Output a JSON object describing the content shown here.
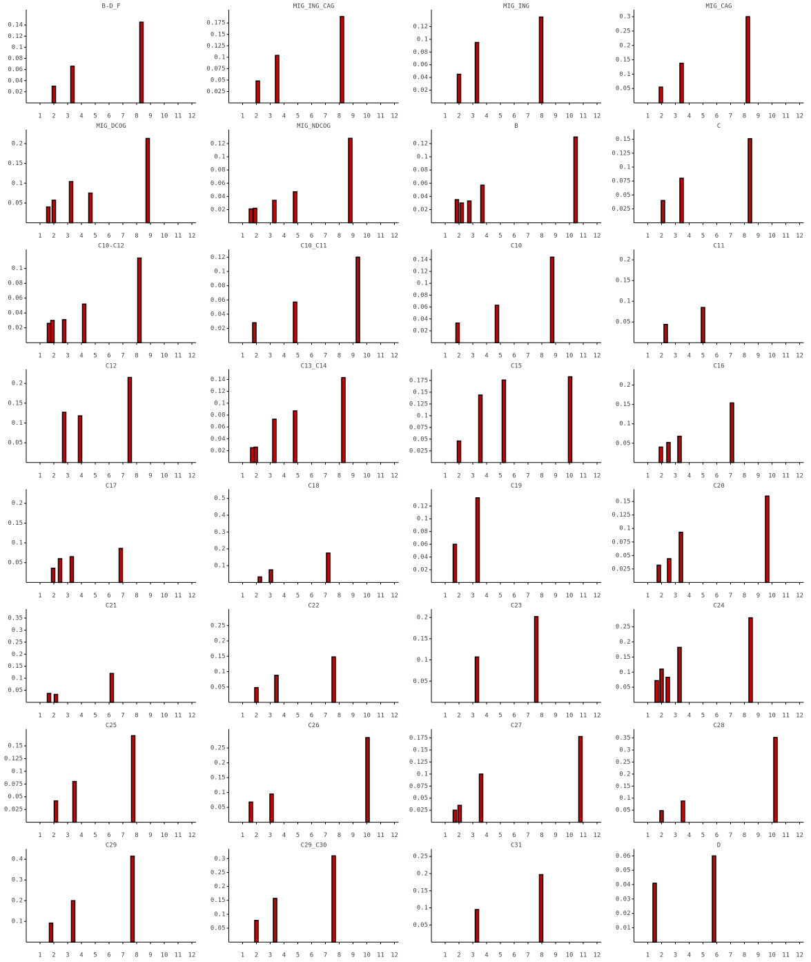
{
  "chart_data": [
    {
      "type": "bar",
      "title": "B-D_F",
      "x": [
        2.0,
        3.35,
        8.35
      ],
      "values": [
        0.03,
        0.066,
        0.145
      ],
      "color": "#cc0000",
      "edgecolor": "#000000",
      "xlim": [
        0,
        12.3
      ],
      "ylim": [
        0,
        0.16
      ],
      "xticks": [
        1,
        2,
        3,
        4,
        5,
        6,
        7,
        8,
        9,
        10,
        11,
        12
      ],
      "yticks": [
        0.02,
        0.04,
        0.06,
        0.08,
        0.1,
        0.12,
        0.14
      ]
    },
    {
      "type": "bar",
      "title": "MIG_ING_CAG",
      "x": [
        2.1,
        3.5,
        8.2
      ],
      "values": [
        0.048,
        0.104,
        0.189
      ],
      "color": "#cc0000",
      "edgecolor": "#000000",
      "xlim": [
        0,
        12.3
      ],
      "ylim": [
        0,
        0.195
      ],
      "xticks": [
        1,
        2,
        3,
        4,
        5,
        6,
        7,
        8,
        9,
        10,
        11,
        12
      ],
      "yticks": [
        0.025,
        0.05,
        0.075,
        0.1,
        0.125,
        0.15,
        0.175
      ]
    },
    {
      "type": "bar",
      "title": "MIG_ING",
      "x": [
        2.0,
        3.3,
        7.95
      ],
      "values": [
        0.045,
        0.095,
        0.135
      ],
      "color": "#cc0000",
      "edgecolor": "#000000",
      "xlim": [
        0,
        12.3
      ],
      "ylim": [
        0,
        0.14
      ],
      "xticks": [
        1,
        2,
        3,
        4,
        5,
        6,
        7,
        8,
        9,
        10,
        11,
        12
      ],
      "yticks": [
        0.02,
        0.04,
        0.06,
        0.08,
        0.1,
        0.12
      ]
    },
    {
      "type": "bar",
      "title": "MIG_CAG",
      "x": [
        1.95,
        3.45,
        8.25
      ],
      "values": [
        0.055,
        0.138,
        0.3
      ],
      "color": "#cc0000",
      "edgecolor": "#000000",
      "xlim": [
        0,
        12.3
      ],
      "ylim": [
        0,
        0.31
      ],
      "xticks": [
        1,
        2,
        3,
        4,
        5,
        6,
        7,
        8,
        9,
        10,
        11,
        12
      ],
      "yticks": [
        0.05,
        0.1,
        0.15,
        0.2,
        0.25,
        0.3
      ]
    },
    {
      "type": "bar",
      "title": "MIG_DCOG",
      "x": [
        1.6,
        2.0,
        3.25,
        4.65,
        8.8
      ],
      "values": [
        0.04,
        0.057,
        0.104,
        0.075,
        0.213
      ],
      "color": "#cc0000",
      "edgecolor": "#000000",
      "xlim": [
        0,
        12.3
      ],
      "ylim": [
        0,
        0.225
      ],
      "xticks": [
        1,
        2,
        3,
        4,
        5,
        6,
        7,
        8,
        9,
        10,
        11,
        12
      ],
      "yticks": [
        0.05,
        0.1,
        0.15,
        0.2
      ]
    },
    {
      "type": "bar",
      "title": "MIG_NDCOG",
      "x": [
        1.6,
        1.9,
        3.3,
        4.8,
        8.8
      ],
      "values": [
        0.021,
        0.022,
        0.034,
        0.047,
        0.128
      ],
      "color": "#cc0000",
      "edgecolor": "#000000",
      "xlim": [
        0,
        12.3
      ],
      "ylim": [
        0,
        0.135
      ],
      "xticks": [
        1,
        2,
        3,
        4,
        5,
        6,
        7,
        8,
        9,
        10,
        11,
        12
      ],
      "yticks": [
        0.02,
        0.04,
        0.06,
        0.08,
        0.1,
        0.12
      ]
    },
    {
      "type": "bar",
      "title": "B",
      "x": [
        1.85,
        2.2,
        2.75,
        3.7,
        10.45
      ],
      "values": [
        0.035,
        0.03,
        0.033,
        0.057,
        0.13
      ],
      "color": "#cc0000",
      "edgecolor": "#000000",
      "xlim": [
        0,
        12.3
      ],
      "ylim": [
        0,
        0.135
      ],
      "xticks": [
        1,
        2,
        3,
        4,
        5,
        6,
        7,
        8,
        9,
        10,
        11,
        12
      ],
      "yticks": [
        0.02,
        0.04,
        0.06,
        0.08,
        0.1,
        0.12
      ]
    },
    {
      "type": "bar",
      "title": "C",
      "x": [
        2.1,
        3.45,
        8.4
      ],
      "values": [
        0.04,
        0.08,
        0.151
      ],
      "color": "#cc0000",
      "edgecolor": "#000000",
      "xlim": [
        0,
        12.3
      ],
      "ylim": [
        0,
        0.16
      ],
      "xticks": [
        1,
        2,
        3,
        4,
        5,
        6,
        7,
        8,
        9,
        10,
        11,
        12
      ],
      "yticks": [
        0.025,
        0.05,
        0.075,
        0.1,
        0.125,
        0.15
      ]
    },
    {
      "type": "bar",
      "title": "C10-C12",
      "x": [
        1.65,
        1.9,
        2.75,
        4.2,
        8.2
      ],
      "values": [
        0.026,
        0.03,
        0.031,
        0.052,
        0.114
      ],
      "color": "#cc0000",
      "edgecolor": "#000000",
      "xlim": [
        0,
        12.3
      ],
      "ylim": [
        0,
        0.12
      ],
      "xticks": [
        1,
        2,
        3,
        4,
        5,
        6,
        7,
        8,
        9,
        10,
        11,
        12
      ],
      "yticks": [
        0.02,
        0.04,
        0.06,
        0.08,
        0.1
      ]
    },
    {
      "type": "bar",
      "title": "C10_C11",
      "x": [
        1.85,
        4.8,
        9.35
      ],
      "values": [
        0.028,
        0.057,
        0.12
      ],
      "color": "#cc0000",
      "edgecolor": "#000000",
      "xlim": [
        0,
        12.3
      ],
      "ylim": [
        0,
        0.125
      ],
      "xticks": [
        1,
        2,
        3,
        4,
        5,
        6,
        7,
        8,
        9,
        10,
        11,
        12
      ],
      "yticks": [
        0.02,
        0.04,
        0.06,
        0.08,
        0.1,
        0.12
      ]
    },
    {
      "type": "bar",
      "title": "C10",
      "x": [
        1.9,
        4.75,
        8.75
      ],
      "values": [
        0.033,
        0.063,
        0.144
      ],
      "color": "#cc0000",
      "edgecolor": "#000000",
      "xlim": [
        0,
        12.3
      ],
      "ylim": [
        0,
        0.15
      ],
      "xticks": [
        1,
        2,
        3,
        4,
        5,
        6,
        7,
        8,
        9,
        10,
        11,
        12
      ],
      "yticks": [
        0.02,
        0.04,
        0.06,
        0.08,
        0.1,
        0.12,
        0.14
      ]
    },
    {
      "type": "bar",
      "title": "C11",
      "x": [
        2.3,
        5.0
      ],
      "values": [
        0.044,
        0.085
      ],
      "color": "#cc0000",
      "edgecolor": "#000000",
      "xlim": [
        0,
        12.3
      ],
      "ylim": [
        0,
        0.215
      ],
      "xticks": [
        1,
        2,
        3,
        4,
        5,
        6,
        7,
        8,
        9,
        10,
        11,
        12
      ],
      "yticks": [
        0.05,
        0.1,
        0.15,
        0.2
      ]
    },
    {
      "type": "bar",
      "title": "C12",
      "x": [
        2.75,
        3.9,
        7.5
      ],
      "values": [
        0.127,
        0.118,
        0.215
      ],
      "color": "#cc0000",
      "edgecolor": "#000000",
      "xlim": [
        0,
        12.3
      ],
      "ylim": [
        0,
        0.225
      ],
      "xticks": [
        1,
        2,
        3,
        4,
        5,
        6,
        7,
        8,
        9,
        10,
        11,
        12
      ],
      "yticks": [
        0.05,
        0.1,
        0.15,
        0.2
      ]
    },
    {
      "type": "bar",
      "title": "C13_C14",
      "x": [
        1.7,
        1.95,
        3.3,
        4.8,
        8.3
      ],
      "values": [
        0.025,
        0.026,
        0.073,
        0.087,
        0.143
      ],
      "color": "#cc0000",
      "edgecolor": "#000000",
      "xlim": [
        0,
        12.3
      ],
      "ylim": [
        0,
        0.15
      ],
      "xticks": [
        1,
        2,
        3,
        4,
        5,
        6,
        7,
        8,
        9,
        10,
        11,
        12
      ],
      "yticks": [
        0.02,
        0.04,
        0.06,
        0.08,
        0.1,
        0.12,
        0.14
      ]
    },
    {
      "type": "bar",
      "title": "C15",
      "x": [
        2.0,
        3.55,
        5.25,
        10.05
      ],
      "values": [
        0.046,
        0.144,
        0.176,
        0.183
      ],
      "color": "#cc0000",
      "edgecolor": "#000000",
      "xlim": [
        0,
        12.3
      ],
      "ylim": [
        0,
        0.19
      ],
      "xticks": [
        1,
        2,
        3,
        4,
        5,
        6,
        7,
        8,
        9,
        10,
        11,
        12
      ],
      "yticks": [
        0.025,
        0.05,
        0.075,
        0.1,
        0.125,
        0.15,
        0.175
      ]
    },
    {
      "type": "bar",
      "title": "C16",
      "x": [
        1.95,
        2.5,
        3.3,
        7.1
      ],
      "values": [
        0.04,
        0.052,
        0.068,
        0.154
      ],
      "color": "#cc0000",
      "edgecolor": "#000000",
      "xlim": [
        0,
        12.3
      ],
      "ylim": [
        0,
        0.23
      ],
      "xticks": [
        1,
        2,
        3,
        4,
        5,
        6,
        7,
        8,
        9,
        10,
        11,
        12
      ],
      "yticks": [
        0.05,
        0.1,
        0.15,
        0.2
      ]
    },
    {
      "type": "bar",
      "title": "C17",
      "x": [
        1.95,
        2.45,
        3.3,
        6.85
      ],
      "values": [
        0.036,
        0.06,
        0.065,
        0.086
      ],
      "color": "#cc0000",
      "edgecolor": "#000000",
      "xlim": [
        0,
        12.3
      ],
      "ylim": [
        0,
        0.225
      ],
      "xticks": [
        1,
        2,
        3,
        4,
        5,
        6,
        7,
        8,
        9,
        10,
        11,
        12
      ],
      "yticks": [
        0.05,
        0.1,
        0.15,
        0.2
      ]
    },
    {
      "type": "bar",
      "title": "C18",
      "x": [
        2.25,
        3.05,
        7.2
      ],
      "values": [
        0.033,
        0.075,
        0.175
      ],
      "color": "#cc0000",
      "edgecolor": "#000000",
      "xlim": [
        0,
        12.3
      ],
      "ylim": [
        0,
        0.53
      ],
      "xticks": [
        1,
        2,
        3,
        4,
        5,
        6,
        7,
        8,
        9,
        10,
        11,
        12
      ],
      "yticks": [
        0.1,
        0.2,
        0.3,
        0.4,
        0.5
      ]
    },
    {
      "type": "bar",
      "title": "C19",
      "x": [
        1.7,
        3.35
      ],
      "values": [
        0.06,
        0.133
      ],
      "color": "#cc0000",
      "edgecolor": "#000000",
      "xlim": [
        0,
        12.3
      ],
      "ylim": [
        0,
        0.14
      ],
      "xticks": [
        1,
        2,
        3,
        4,
        5,
        6,
        7,
        8,
        9,
        10,
        11,
        12
      ],
      "yticks": [
        0.02,
        0.04,
        0.06,
        0.08,
        0.1,
        0.12
      ]
    },
    {
      "type": "bar",
      "title": "C20",
      "x": [
        1.8,
        2.55,
        3.4,
        9.65
      ],
      "values": [
        0.032,
        0.044,
        0.093,
        0.16
      ],
      "color": "#cc0000",
      "edgecolor": "#000000",
      "xlim": [
        0,
        12.3
      ],
      "ylim": [
        0,
        0.165
      ],
      "xticks": [
        1,
        2,
        3,
        4,
        5,
        6,
        7,
        8,
        9,
        10,
        11,
        12
      ],
      "yticks": [
        0.025,
        0.05,
        0.075,
        0.1,
        0.125,
        0.15
      ]
    },
    {
      "type": "bar",
      "title": "C21",
      "x": [
        1.65,
        2.15,
        6.2
      ],
      "values": [
        0.037,
        0.033,
        0.12
      ],
      "color": "#cc0000",
      "edgecolor": "#000000",
      "xlim": [
        0,
        12.3
      ],
      "ylim": [
        0,
        0.37
      ],
      "xticks": [
        1,
        2,
        3,
        4,
        5,
        6,
        7,
        8,
        9,
        10,
        11,
        12
      ],
      "yticks": [
        0.05,
        0.1,
        0.15,
        0.2,
        0.25,
        0.3,
        0.35
      ]
    },
    {
      "type": "bar",
      "title": "C22",
      "x": [
        2.0,
        3.45,
        7.6
      ],
      "values": [
        0.048,
        0.088,
        0.148
      ],
      "color": "#cc0000",
      "edgecolor": "#000000",
      "xlim": [
        0,
        12.3
      ],
      "ylim": [
        0,
        0.29
      ],
      "xticks": [
        1,
        2,
        3,
        4,
        5,
        6,
        7,
        8,
        9,
        10,
        11,
        12
      ],
      "yticks": [
        0.05,
        0.1,
        0.15,
        0.2,
        0.25
      ]
    },
    {
      "type": "bar",
      "title": "C23",
      "x": [
        3.3,
        7.6
      ],
      "values": [
        0.107,
        0.202
      ],
      "color": "#cc0000",
      "edgecolor": "#000000",
      "xlim": [
        0,
        12.3
      ],
      "ylim": [
        0,
        0.21
      ],
      "xticks": [
        1,
        2,
        3,
        4,
        5,
        6,
        7,
        8,
        9,
        10,
        11,
        12
      ],
      "yticks": [
        0.05,
        0.1,
        0.15,
        0.2
      ]
    },
    {
      "type": "bar",
      "title": "C24",
      "x": [
        1.65,
        2.0,
        2.45,
        3.3,
        8.45
      ],
      "values": [
        0.072,
        0.11,
        0.083,
        0.182,
        0.28
      ],
      "color": "#cc0000",
      "edgecolor": "#000000",
      "xlim": [
        0,
        12.3
      ],
      "ylim": [
        0,
        0.295
      ],
      "xticks": [
        1,
        2,
        3,
        4,
        5,
        6,
        7,
        8,
        9,
        10,
        11,
        12
      ],
      "yticks": [
        0.05,
        0.1,
        0.15,
        0.2,
        0.25
      ]
    },
    {
      "type": "bar",
      "title": "C25",
      "x": [
        2.15,
        3.5,
        7.75
      ],
      "values": [
        0.042,
        0.08,
        0.17
      ],
      "color": "#cc0000",
      "edgecolor": "#000000",
      "xlim": [
        0,
        12.3
      ],
      "ylim": [
        0,
        0.175
      ],
      "xticks": [
        1,
        2,
        3,
        4,
        5,
        6,
        7,
        8,
        9,
        10,
        11,
        12
      ],
      "yticks": [
        0.025,
        0.05,
        0.075,
        0.1,
        0.125,
        0.15
      ]
    },
    {
      "type": "bar",
      "title": "C26",
      "x": [
        1.6,
        3.1,
        10.05
      ],
      "values": [
        0.068,
        0.095,
        0.285
      ],
      "color": "#cc0000",
      "edgecolor": "#000000",
      "xlim": [
        0,
        12.3
      ],
      "ylim": [
        0,
        0.3
      ],
      "xticks": [
        1,
        2,
        3,
        4,
        5,
        6,
        7,
        8,
        9,
        10,
        11,
        12
      ],
      "yticks": [
        0.05,
        0.1,
        0.15,
        0.2,
        0.25
      ]
    },
    {
      "type": "bar",
      "title": "C27",
      "x": [
        1.7,
        2.05,
        3.6,
        10.8
      ],
      "values": [
        0.025,
        0.035,
        0.1,
        0.178
      ],
      "color": "#cc0000",
      "edgecolor": "#000000",
      "xlim": [
        0,
        12.3
      ],
      "ylim": [
        0,
        0.185
      ],
      "xticks": [
        1,
        2,
        3,
        4,
        5,
        6,
        7,
        8,
        9,
        10,
        11,
        12
      ],
      "yticks": [
        0.025,
        0.05,
        0.075,
        0.1,
        0.125,
        0.15,
        0.175
      ]
    },
    {
      "type": "bar",
      "title": "C28",
      "x": [
        2.0,
        3.55,
        10.25
      ],
      "values": [
        0.048,
        0.088,
        0.352
      ],
      "color": "#cc0000",
      "edgecolor": "#000000",
      "xlim": [
        0,
        12.3
      ],
      "ylim": [
        0,
        0.37
      ],
      "xticks": [
        1,
        2,
        3,
        4,
        5,
        6,
        7,
        8,
        9,
        10,
        11,
        12
      ],
      "yticks": [
        0.05,
        0.1,
        0.15,
        0.2,
        0.25,
        0.3,
        0.35
      ]
    },
    {
      "type": "bar",
      "title": "C29",
      "x": [
        1.8,
        3.4,
        7.7
      ],
      "values": [
        0.092,
        0.2,
        0.415
      ],
      "color": "#cc0000",
      "edgecolor": "#000000",
      "xlim": [
        0,
        12.3
      ],
      "ylim": [
        0,
        0.43
      ],
      "xticks": [
        1,
        2,
        3,
        4,
        5,
        6,
        7,
        8,
        9,
        10,
        11,
        12
      ],
      "yticks": [
        0.1,
        0.2,
        0.3,
        0.4
      ]
    },
    {
      "type": "bar",
      "title": "C29_C30",
      "x": [
        2.0,
        3.35,
        7.6
      ],
      "values": [
        0.078,
        0.157,
        0.31
      ],
      "color": "#cc0000",
      "edgecolor": "#000000",
      "xlim": [
        0,
        12.3
      ],
      "ylim": [
        0,
        0.32
      ],
      "xticks": [
        1,
        2,
        3,
        4,
        5,
        6,
        7,
        8,
        9,
        10,
        11,
        12
      ],
      "yticks": [
        0.05,
        0.1,
        0.15,
        0.2,
        0.25,
        0.3
      ]
    },
    {
      "type": "bar",
      "title": "C31",
      "x": [
        3.3,
        7.95
      ],
      "values": [
        0.095,
        0.197
      ],
      "color": "#cc0000",
      "edgecolor": "#000000",
      "xlim": [
        0,
        12.3
      ],
      "ylim": [
        0,
        0.26
      ],
      "xticks": [
        1,
        2,
        3,
        4,
        5,
        6,
        7,
        8,
        9,
        10,
        11,
        12
      ],
      "yticks": [
        0.05,
        0.1,
        0.15,
        0.2,
        0.25
      ]
    },
    {
      "type": "bar",
      "title": "D",
      "x": [
        1.5,
        5.8
      ],
      "values": [
        0.041,
        0.06
      ],
      "color": "#cc0000",
      "edgecolor": "#000000",
      "xlim": [
        0,
        12.3
      ],
      "ylim": [
        0,
        0.062
      ],
      "xticks": [
        1,
        2,
        3,
        4,
        5,
        6,
        7,
        8,
        9,
        10,
        11,
        12
      ],
      "yticks": [
        0.01,
        0.02,
        0.03,
        0.04,
        0.05,
        0.06
      ]
    }
  ]
}
